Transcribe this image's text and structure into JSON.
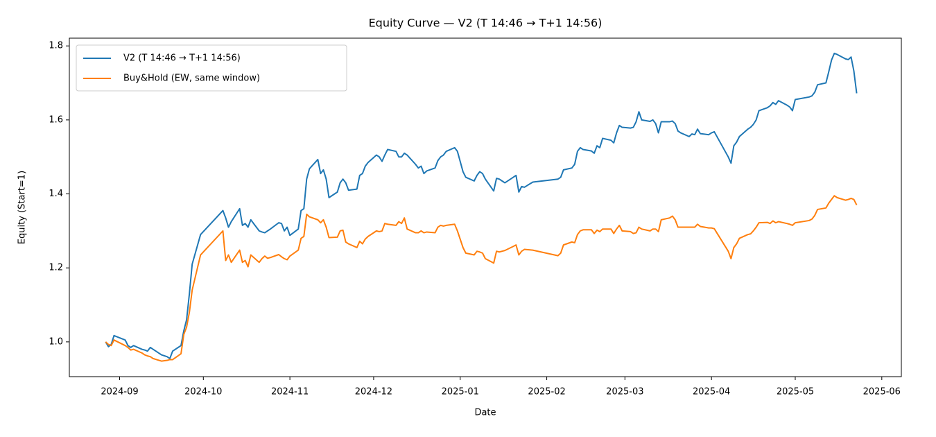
{
  "chart_data": {
    "type": "line",
    "title": "Equity Curve — V2 (T 14:46 → T+1 14:56)",
    "x_label": "Date",
    "y_label": "Equity (Start=1)",
    "legend": "upper left",
    "xlim": [
      "2024-08-14",
      "2025-06-08"
    ],
    "ylim": [
      0.906,
      1.821
    ],
    "xticks": [
      {
        "value": "2024-09-01",
        "label": "2024-09"
      },
      {
        "value": "2024-10-01",
        "label": "2024-10"
      },
      {
        "value": "2024-11-01",
        "label": "2024-11"
      },
      {
        "value": "2024-12-01",
        "label": "2024-12"
      },
      {
        "value": "2025-01-01",
        "label": "2025-01"
      },
      {
        "value": "2025-02-01",
        "label": "2025-02"
      },
      {
        "value": "2025-03-01",
        "label": "2025-03"
      },
      {
        "value": "2025-04-01",
        "label": "2025-04"
      },
      {
        "value": "2025-05-01",
        "label": "2025-05"
      },
      {
        "value": "2025-06-01",
        "label": "2025-06"
      }
    ],
    "yticks": [
      {
        "value": 1,
        "label": "1.0"
      },
      1.2,
      1.4,
      1.6,
      1.8
    ],
    "x": [
      "2024-08-27",
      "2024-08-28",
      "2024-08-29",
      "2024-08-30",
      "2024-09-03",
      "2024-09-04",
      "2024-09-05",
      "2024-09-06",
      "2024-09-09",
      "2024-09-10",
      "2024-09-11",
      "2024-09-12",
      "2024-09-13",
      "2024-09-16",
      "2024-09-18",
      "2024-09-19",
      "2024-09-20",
      "2024-09-23",
      "2024-09-24",
      "2024-09-25",
      "2024-09-26",
      "2024-09-27",
      "2024-09-30",
      "2024-10-08",
      "2024-10-09",
      "2024-10-10",
      "2024-10-11",
      "2024-10-14",
      "2024-10-15",
      "2024-10-16",
      "2024-10-17",
      "2024-10-18",
      "2024-10-21",
      "2024-10-22",
      "2024-10-23",
      "2024-10-24",
      "2024-10-25",
      "2024-10-28",
      "2024-10-29",
      "2024-10-30",
      "2024-10-31",
      "2024-11-01",
      "2024-11-04",
      "2024-11-05",
      "2024-11-06",
      "2024-11-07",
      "2024-11-08",
      "2024-11-11",
      "2024-11-12",
      "2024-11-13",
      "2024-11-14",
      "2024-11-15",
      "2024-11-18",
      "2024-11-19",
      "2024-11-20",
      "2024-11-21",
      "2024-11-22",
      "2024-11-25",
      "2024-11-26",
      "2024-11-27",
      "2024-11-28",
      "2024-11-29",
      "2024-12-02",
      "2024-12-03",
      "2024-12-04",
      "2024-12-05",
      "2024-12-06",
      "2024-12-09",
      "2024-12-10",
      "2024-12-11",
      "2024-12-12",
      "2024-12-13",
      "2024-12-16",
      "2024-12-17",
      "2024-12-18",
      "2024-12-19",
      "2024-12-20",
      "2024-12-23",
      "2024-12-24",
      "2024-12-25",
      "2024-12-26",
      "2024-12-27",
      "2024-12-30",
      "2024-12-31",
      "2025-01-02",
      "2025-01-03",
      "2025-01-06",
      "2025-01-07",
      "2025-01-08",
      "2025-01-09",
      "2025-01-10",
      "2025-01-13",
      "2025-01-14",
      "2025-01-15",
      "2025-01-16",
      "2025-01-17",
      "2025-01-20",
      "2025-01-21",
      "2025-01-22",
      "2025-01-23",
      "2025-01-24",
      "2025-01-27",
      "2025-02-05",
      "2025-02-06",
      "2025-02-07",
      "2025-02-10",
      "2025-02-11",
      "2025-02-12",
      "2025-02-13",
      "2025-02-14",
      "2025-02-17",
      "2025-02-18",
      "2025-02-19",
      "2025-02-20",
      "2025-02-21",
      "2025-02-24",
      "2025-02-25",
      "2025-02-26",
      "2025-02-27",
      "2025-02-28",
      "2025-03-03",
      "2025-03-04",
      "2025-03-05",
      "2025-03-06",
      "2025-03-07",
      "2025-03-10",
      "2025-03-11",
      "2025-03-12",
      "2025-03-13",
      "2025-03-14",
      "2025-03-17",
      "2025-03-18",
      "2025-03-19",
      "2025-03-20",
      "2025-03-21",
      "2025-03-24",
      "2025-03-25",
      "2025-03-26",
      "2025-03-27",
      "2025-03-28",
      "2025-03-31",
      "2025-04-01",
      "2025-04-02",
      "2025-04-07",
      "2025-04-08",
      "2025-04-09",
      "2025-04-10",
      "2025-04-11",
      "2025-04-14",
      "2025-04-15",
      "2025-04-16",
      "2025-04-17",
      "2025-04-18",
      "2025-04-21",
      "2025-04-22",
      "2025-04-23",
      "2025-04-24",
      "2025-04-25",
      "2025-04-28",
      "2025-04-29",
      "2025-04-30",
      "2025-05-01",
      "2025-05-06",
      "2025-05-07",
      "2025-05-08",
      "2025-05-09",
      "2025-05-12",
      "2025-05-13",
      "2025-05-14",
      "2025-05-15",
      "2025-05-16",
      "2025-05-19",
      "2025-05-20",
      "2025-05-21",
      "2025-05-22",
      "2025-05-23"
    ],
    "series": [
      {
        "name": "V2 (T 14:46 → T+1 14:56)",
        "color": "#1f77b4",
        "values": [
          1.0,
          0.987,
          0.993,
          1.017,
          1.005,
          0.99,
          0.985,
          0.99,
          0.98,
          0.978,
          0.975,
          0.985,
          0.98,
          0.965,
          0.96,
          0.955,
          0.975,
          0.99,
          1.03,
          1.06,
          1.13,
          1.21,
          1.29,
          1.355,
          1.335,
          1.31,
          1.325,
          1.36,
          1.315,
          1.32,
          1.31,
          1.33,
          1.3,
          1.297,
          1.295,
          1.3,
          1.305,
          1.322,
          1.32,
          1.3,
          1.31,
          1.288,
          1.305,
          1.355,
          1.36,
          1.44,
          1.468,
          1.493,
          1.455,
          1.465,
          1.44,
          1.39,
          1.405,
          1.43,
          1.44,
          1.43,
          1.41,
          1.413,
          1.45,
          1.455,
          1.475,
          1.485,
          1.505,
          1.5,
          1.488,
          1.505,
          1.52,
          1.515,
          1.5,
          1.5,
          1.51,
          1.505,
          1.48,
          1.47,
          1.475,
          1.455,
          1.462,
          1.47,
          1.49,
          1.5,
          1.505,
          1.515,
          1.525,
          1.515,
          1.46,
          1.445,
          1.435,
          1.45,
          1.46,
          1.455,
          1.44,
          1.408,
          1.442,
          1.44,
          1.435,
          1.43,
          1.445,
          1.45,
          1.405,
          1.42,
          1.418,
          1.432,
          1.44,
          1.445,
          1.465,
          1.47,
          1.48,
          1.515,
          1.525,
          1.52,
          1.516,
          1.51,
          1.53,
          1.525,
          1.55,
          1.545,
          1.538,
          1.565,
          1.585,
          1.58,
          1.578,
          1.58,
          1.595,
          1.622,
          1.6,
          1.596,
          1.6,
          1.59,
          1.565,
          1.595,
          1.595,
          1.597,
          1.59,
          1.57,
          1.565,
          1.555,
          1.562,
          1.56,
          1.575,
          1.563,
          1.56,
          1.565,
          1.568,
          1.5,
          1.483,
          1.53,
          1.54,
          1.555,
          1.575,
          1.58,
          1.588,
          1.6,
          1.625,
          1.633,
          1.638,
          1.647,
          1.642,
          1.652,
          1.64,
          1.635,
          1.625,
          1.655,
          1.662,
          1.665,
          1.675,
          1.695,
          1.7,
          1.73,
          1.762,
          1.78,
          1.777,
          1.765,
          1.763,
          1.77,
          1.732,
          1.672
        ]
      },
      {
        "name": "Buy&Hold (EW, same window)",
        "color": "#ff7f0e",
        "values": [
          1.0,
          0.993,
          0.99,
          1.005,
          0.99,
          0.985,
          0.978,
          0.98,
          0.97,
          0.965,
          0.962,
          0.96,
          0.955,
          0.948,
          0.95,
          0.952,
          0.952,
          0.968,
          1.02,
          1.04,
          1.08,
          1.14,
          1.235,
          1.3,
          1.22,
          1.235,
          1.215,
          1.248,
          1.215,
          1.22,
          1.203,
          1.235,
          1.215,
          1.225,
          1.232,
          1.226,
          1.228,
          1.236,
          1.23,
          1.225,
          1.222,
          1.232,
          1.248,
          1.28,
          1.285,
          1.345,
          1.338,
          1.33,
          1.322,
          1.33,
          1.31,
          1.282,
          1.283,
          1.3,
          1.302,
          1.27,
          1.265,
          1.255,
          1.272,
          1.265,
          1.278,
          1.285,
          1.3,
          1.298,
          1.3,
          1.32,
          1.318,
          1.315,
          1.325,
          1.32,
          1.335,
          1.305,
          1.295,
          1.295,
          1.3,
          1.295,
          1.297,
          1.295,
          1.31,
          1.315,
          1.313,
          1.315,
          1.318,
          1.3,
          1.255,
          1.24,
          1.235,
          1.245,
          1.243,
          1.24,
          1.225,
          1.213,
          1.245,
          1.243,
          1.245,
          1.247,
          1.258,
          1.262,
          1.235,
          1.245,
          1.25,
          1.248,
          1.233,
          1.24,
          1.262,
          1.27,
          1.268,
          1.29,
          1.3,
          1.303,
          1.303,
          1.293,
          1.302,
          1.298,
          1.305,
          1.305,
          1.293,
          1.305,
          1.315,
          1.3,
          1.298,
          1.293,
          1.295,
          1.31,
          1.305,
          1.3,
          1.305,
          1.305,
          1.298,
          1.33,
          1.335,
          1.34,
          1.33,
          1.31,
          1.31,
          1.31,
          1.31,
          1.31,
          1.318,
          1.312,
          1.308,
          1.308,
          1.306,
          1.245,
          1.225,
          1.255,
          1.265,
          1.28,
          1.29,
          1.292,
          1.3,
          1.31,
          1.322,
          1.323,
          1.32,
          1.327,
          1.322,
          1.325,
          1.32,
          1.318,
          1.315,
          1.322,
          1.328,
          1.332,
          1.342,
          1.358,
          1.362,
          1.375,
          1.385,
          1.395,
          1.39,
          1.383,
          1.385,
          1.388,
          1.385,
          1.37
        ]
      }
    ]
  }
}
